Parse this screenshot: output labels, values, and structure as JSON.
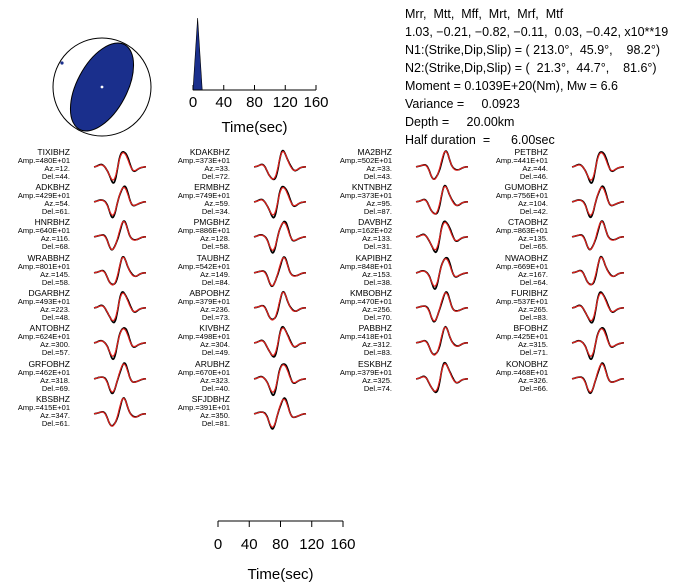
{
  "header": {
    "line1": "Mrr,  Mtt,  Mff,  Mrt,  Mrf,  Mtf",
    "line2": "1.03, −0.21, −0.82, −0.11,  0.03, −0.42, x10**19",
    "line3": "N1:(Strike,Dip,Slip) = ( 213.0°,  45.9°,    98.2°)",
    "line4": "N2:(Strike,Dip,Slip) = (  21.3°,  44.7°,    81.6°)",
    "line5": "Moment = 0.1039E+20(Nm), Mw = 6.6",
    "line6": "Variance =     0.0923",
    "line7": "Depth =     20.00km",
    "line8": "Half duration  =      6.00sec"
  },
  "colors": {
    "observed": "#000000",
    "synthetic": "#e0201b",
    "beachball_fill": "#1a2f8c",
    "stf_fill": "#1a2f8c"
  },
  "stf_axis": {
    "ticks": [
      "0",
      "40",
      "80",
      "120",
      "160"
    ],
    "label": "Time(sec)"
  },
  "bottom_axis": {
    "ticks": [
      "0",
      "40",
      "80",
      "120",
      "160"
    ],
    "label": "Time(sec)"
  },
  "chart_data": {
    "type": "line",
    "title": "",
    "xlabel": "Time(sec)",
    "xlim": [
      0,
      160
    ],
    "series": [
      {
        "name": "observed"
      },
      {
        "name": "synthetic"
      }
    ],
    "stations": [
      {
        "name": "TIXIBHZ",
        "amp": "Amp.=480E+01",
        "az": "Az.=12.",
        "del": "Del.=44."
      },
      {
        "name": "ADKBHZ",
        "amp": "Amp.=429E+01",
        "az": "Az.=54.",
        "del": "Del.=61."
      },
      {
        "name": "HNRBHZ",
        "amp": "Amp.=640E+01",
        "az": "Az.=116.",
        "del": "Del.=68."
      },
      {
        "name": "WRABBHZ",
        "amp": "Amp.=801E+01",
        "az": "Az.=145.",
        "del": "Del.=58."
      },
      {
        "name": "DGARBHZ",
        "amp": "Amp.=493E+01",
        "az": "Az.=223.",
        "del": "Del.=48."
      },
      {
        "name": "ANTOBHZ",
        "amp": "Amp.=624E+01",
        "az": "Az.=300.",
        "del": "Del.=57."
      },
      {
        "name": "GRFOBHZ",
        "amp": "Amp.=462E+01",
        "az": "Az.=318.",
        "del": "Del.=69."
      },
      {
        "name": "KBSBHZ",
        "amp": "Amp.=415E+01",
        "az": "Az.=347.",
        "del": "Del.=61."
      },
      {
        "name": "KDAKBHZ",
        "amp": "Amp.=373E+01",
        "az": "Az.=33.",
        "del": "Del.=72."
      },
      {
        "name": "ERMBHZ",
        "amp": "Amp.=749E+01",
        "az": "Az.=59.",
        "del": "Del.=34."
      },
      {
        "name": "PMGBHZ",
        "amp": "Amp.=886E+01",
        "az": "Az.=128.",
        "del": "Del.=58."
      },
      {
        "name": "TAUBHZ",
        "amp": "Amp.=542E+01",
        "az": "Az.=149.",
        "del": "Del.=84."
      },
      {
        "name": "ABPOBHZ",
        "amp": "Amp.=379E+01",
        "az": "Az.=236.",
        "del": "Del.=73."
      },
      {
        "name": "KIVBHZ",
        "amp": "Amp.=498E+01",
        "az": "Az.=304.",
        "del": "Del.=49."
      },
      {
        "name": "ARUBHZ",
        "amp": "Amp.=670E+01",
        "az": "Az.=323.",
        "del": "Del.=40."
      },
      {
        "name": "SFJDBHZ",
        "amp": "Amp.=391E+01",
        "az": "Az.=350.",
        "del": "Del.=81."
      },
      {
        "name": "MA2BHZ",
        "amp": "Amp.=502E+01",
        "az": "Az.=33.",
        "del": "Del.=43."
      },
      {
        "name": "KNTNBHZ",
        "amp": "Amp.=373E+01",
        "az": "Az.=95.",
        "del": "Del.=87."
      },
      {
        "name": "DAVBHZ",
        "amp": "Amp.=162E+02",
        "az": "Az.=133.",
        "del": "Del.=31."
      },
      {
        "name": "KAPIBHZ",
        "amp": "Amp.=848E+01",
        "az": "Az.=153.",
        "del": "Del.=38."
      },
      {
        "name": "KMBOBHZ",
        "amp": "Amp.=470E+01",
        "az": "Az.=256.",
        "del": "Del.=70."
      },
      {
        "name": "PABBHZ",
        "amp": "Amp.=418E+01",
        "az": "Az.=312.",
        "del": "Del.=83."
      },
      {
        "name": "ESKBHZ",
        "amp": "Amp.=379E+01",
        "az": "Az.=325.",
        "del": "Del.=74."
      },
      {
        "name": "PETBHZ",
        "amp": "Amp.=441E+01",
        "az": "Az.=44.",
        "del": "Del.=46."
      },
      {
        "name": "GUMOBHZ",
        "amp": "Amp.=756E+01",
        "az": "Az.=104.",
        "del": "Del.=42."
      },
      {
        "name": "CTAOBHZ",
        "amp": "Amp.=863E+01",
        "az": "Az.=135.",
        "del": "Del.=65."
      },
      {
        "name": "NWAOBHZ",
        "amp": "Amp.=669E+01",
        "az": "Az.=167.",
        "del": "Del.=64."
      },
      {
        "name": "FURIBHZ",
        "amp": "Amp.=537E+01",
        "az": "Az.=265.",
        "del": "Del.=83."
      },
      {
        "name": "BFOBHZ",
        "amp": "Amp.=425E+01",
        "az": "Az.=315.",
        "del": "Del.=71."
      },
      {
        "name": "KONOBHZ",
        "amp": "Amp.=468E+01",
        "az": "Az.=326.",
        "del": "Del.=66."
      }
    ]
  }
}
